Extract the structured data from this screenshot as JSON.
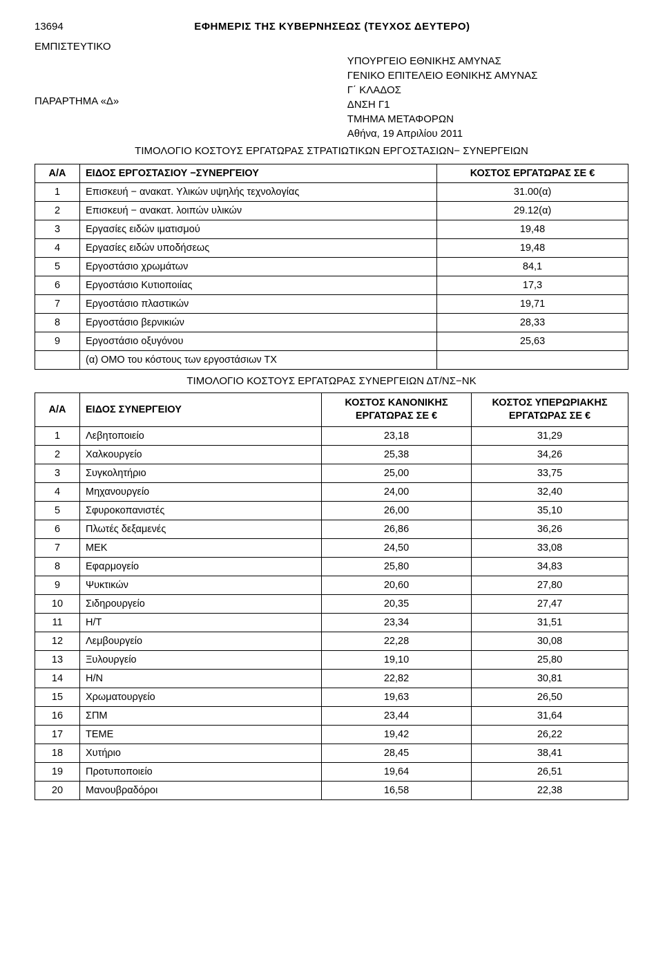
{
  "header": {
    "page_number": "13694",
    "gazette_title": "ΕΦΗΜΕΡΙΣ ΤΗΣ ΚΥΒΕΡΝΗΣΕΩΣ (ΤΕΥΧΟΣ ΔΕΥΤΕΡΟ)"
  },
  "classification": "ΕΜΠΙΣΤΕΥΤΙΚΟ",
  "annex": "ΠΑΡΑΡΤΗΜΑ «Δ»",
  "ministry_block": {
    "line1": "ΥΠΟΥΡΓΕΙΟ ΕΘΝΙΚΗΣ ΑΜΥΝΑΣ",
    "line2": "ΓΕΝΙΚΟ ΕΠΙΤΕΛΕΙΟ ΕΘΝΙΚΗΣ ΑΜΥΝΑΣ",
    "line3": "Γ΄ ΚΛΑΔΟΣ",
    "line4": "ΔΝΣΗ Γ1",
    "line5": "ΤΜΗΜΑ ΜΕΤΑΦΟΡΩΝ",
    "line6": "Αθήνα, 19 Απριλίου 2011"
  },
  "table1": {
    "title": "ΤΙΜΟΛΟΓΙΟ ΚΟΣΤΟΥΣ ΕΡΓΑΤΩΡΑΣ ΣΤΡΑΤΙΩΤΙΚΩΝ ΕΡΓΟΣΤΑΣΙΩΝ− ΣΥΝΕΡΓΕΙΩΝ",
    "headers": {
      "aa": "Α/Α",
      "kind": "ΕΙΔΟΣ ΕΡΓΟΣΤΑΣΙΟΥ −ΣΥΝΕΡΓΕΙΟΥ",
      "cost": "ΚΟΣΤΟΣ ΕΡΓΑΤΩΡΑΣ ΣΕ €"
    },
    "rows": [
      {
        "aa": "1",
        "label": "Επισκευή − ανακατ. Υλικών υψηλής τεχνολογίας",
        "cost": "31.00(α)"
      },
      {
        "aa": "2",
        "label": "Επισκευή − ανακατ. λοιπών υλικών",
        "cost": "29.12(α)"
      },
      {
        "aa": "3",
        "label": "Εργασίες ειδών ιματισμού",
        "cost": "19,48"
      },
      {
        "aa": "4",
        "label": "Εργασίες ειδών υποδήσεως",
        "cost": "19,48"
      },
      {
        "aa": "5",
        "label": "Εργοστάσιο χρωμάτων",
        "cost": "84,1"
      },
      {
        "aa": "6",
        "label": "Εργοστάσιο Κυτιοποιίας",
        "cost": "17,3"
      },
      {
        "aa": "7",
        "label": "Εργοστάσιο πλαστικών",
        "cost": "19,71"
      },
      {
        "aa": "8",
        "label": "Εργοστάσιο βερνικιών",
        "cost": "28,33"
      },
      {
        "aa": "9",
        "label": "Εργοστάσιο οξυγόνου",
        "cost": "25,63"
      }
    ],
    "footnote": "(α) ΟΜΟ του κόστους των εργοστάσιων ΤΧ"
  },
  "table2": {
    "title": "ΤΙΜΟΛΟΓΙΟ ΚΟΣΤΟΥΣ ΕΡΓΑΤΩΡΑΣ ΣΥΝΕΡΓΕΙΩΝ ΔΤ/ΝΣ−ΝΚ",
    "headers": {
      "aa": "Α/Α",
      "kind": "ΕΙΔΟΣ ΣΥΝΕΡΓΕΙΟΥ",
      "cost_normal_l1": "ΚΟΣΤΟΣ ΚΑΝΟΝΙΚΗΣ",
      "cost_normal_l2": "ΕΡΓΑΤΩΡΑΣ ΣΕ €",
      "cost_over_l1": "ΚΟΣΤΟΣ ΥΠΕΡΩΡΙΑΚΗΣ",
      "cost_over_l2": "ΕΡΓΑΤΩΡΑΣ ΣΕ €"
    },
    "rows": [
      {
        "aa": "1",
        "label": "Λεβητοποιείο",
        "c1": "23,18",
        "c2": "31,29"
      },
      {
        "aa": "2",
        "label": "Χαλκουργείο",
        "c1": "25,38",
        "c2": "34,26"
      },
      {
        "aa": "3",
        "label": "Συγκολητήριο",
        "c1": "25,00",
        "c2": "33,75"
      },
      {
        "aa": "4",
        "label": "Μηχανουργείο",
        "c1": "24,00",
        "c2": "32,40"
      },
      {
        "aa": "5",
        "label": "Σφυροκοπανιστές",
        "c1": "26,00",
        "c2": "35,10"
      },
      {
        "aa": "6",
        "label": "Πλωτές δεξαμενές",
        "c1": "26,86",
        "c2": "36,26"
      },
      {
        "aa": "7",
        "label": "ΜΕΚ",
        "c1": "24,50",
        "c2": "33,08"
      },
      {
        "aa": "8",
        "label": "Εφαρμογείο",
        "c1": "25,80",
        "c2": "34,83"
      },
      {
        "aa": "9",
        "label": "Ψυκτικών",
        "c1": "20,60",
        "c2": "27,80"
      },
      {
        "aa": "10",
        "label": "Σιδηρουργείο",
        "c1": "20,35",
        "c2": "27,47"
      },
      {
        "aa": "11",
        "label": "Η/Τ",
        "c1": "23,34",
        "c2": "31,51"
      },
      {
        "aa": "12",
        "label": "Λεμβουργείο",
        "c1": "22,28",
        "c2": "30,08"
      },
      {
        "aa": "13",
        "label": "Ξυλουργείο",
        "c1": "19,10",
        "c2": "25,80"
      },
      {
        "aa": "14",
        "label": "Η/Ν",
        "c1": "22,82",
        "c2": "30,81"
      },
      {
        "aa": "15",
        "label": "Χρωματουργείο",
        "c1": "19,63",
        "c2": "26,50"
      },
      {
        "aa": "16",
        "label": "ΣΠΜ",
        "c1": "23,44",
        "c2": "31,64"
      },
      {
        "aa": "17",
        "label": "ΤΕΜΕ",
        "c1": "19,42",
        "c2": "26,22"
      },
      {
        "aa": "18",
        "label": "Χυτήριο",
        "c1": "28,45",
        "c2": "38,41"
      },
      {
        "aa": "19",
        "label": "Προτυποποιείο",
        "c1": "19,64",
        "c2": "26,51"
      },
      {
        "aa": "20",
        "label": "Μανουβραδόροι",
        "c1": "16,58",
        "c2": "22,38"
      }
    ]
  },
  "style": {
    "page_bg": "#ffffff",
    "text_color": "#000000",
    "border_color": "#000000",
    "font_family": "Arial",
    "body_fontsize_pt": 11,
    "header_fontsize_pt": 11
  }
}
